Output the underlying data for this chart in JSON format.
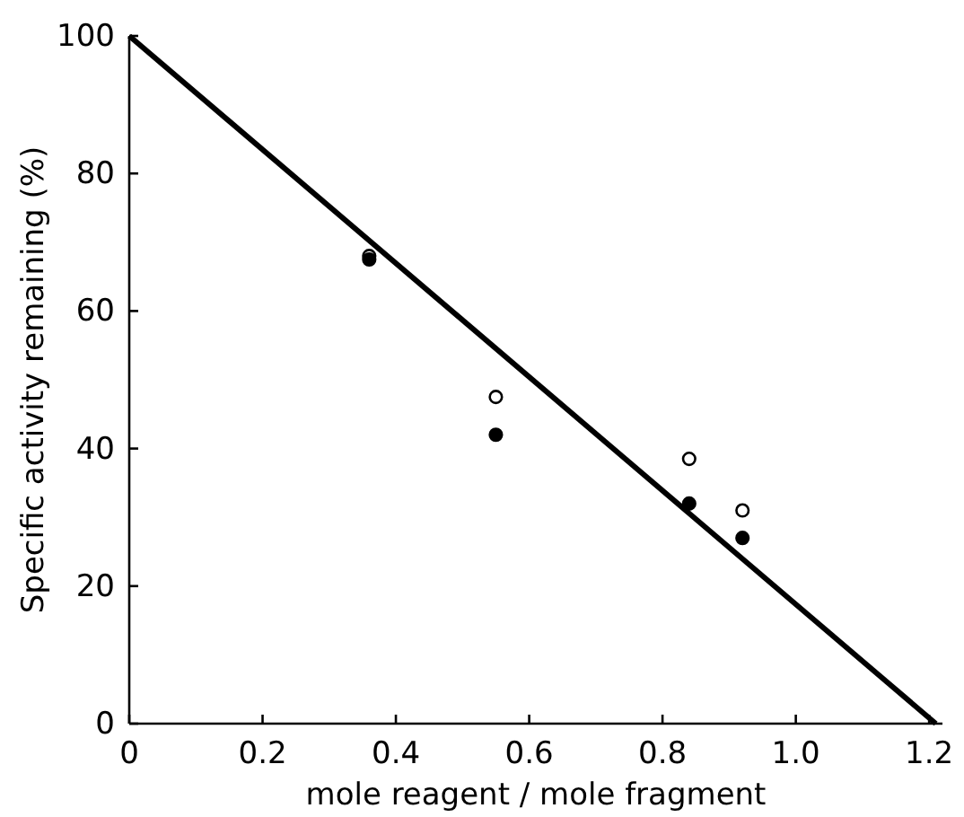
{
  "chart_data": {
    "type": "scatter",
    "xlabel": "mole reagent / mole fragment",
    "ylabel": "Specific activity remaining (%)",
    "xlim": [
      0,
      1.22
    ],
    "ylim": [
      0,
      100
    ],
    "xticks": [
      0,
      0.2,
      0.4,
      0.6,
      0.8,
      {
        "value": 1.0,
        "label": "1.0"
      },
      1.2
    ],
    "yticks": [
      0,
      20,
      40,
      60,
      80,
      100
    ],
    "grid": false,
    "marker": "circle",
    "series": [
      {
        "type": "line",
        "color": "#000000",
        "x": [
          0,
          1.21
        ],
        "values": [
          100,
          0
        ],
        "marker": "none",
        "line_style": "solid"
      },
      {
        "color": "#ffffff",
        "x": [
          0.36,
          0.55,
          0.84,
          0.92
        ],
        "values": [
          68,
          47.5,
          38.5,
          31
        ]
      },
      {
        "color": "#000000",
        "x": [
          0.36,
          0.55,
          0.84,
          0.92
        ],
        "values": [
          67.5,
          42,
          32,
          27
        ]
      }
    ]
  }
}
